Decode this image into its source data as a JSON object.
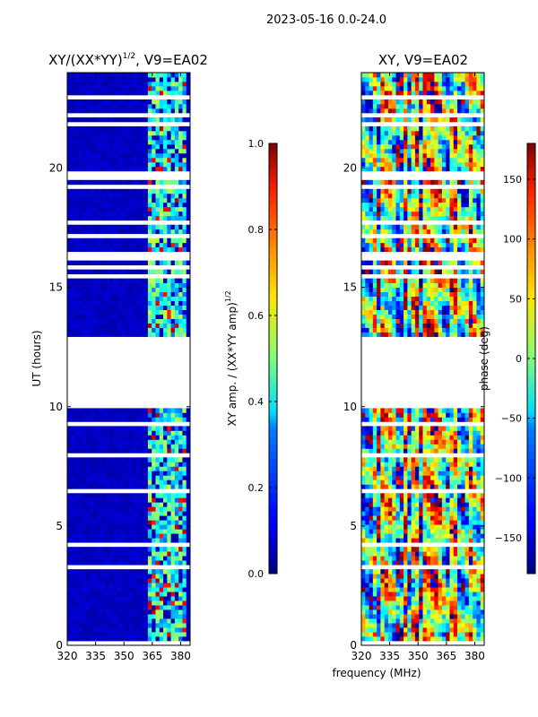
{
  "figure": {
    "suptitle": "2023-05-16 0.0-24.0",
    "xlabel": "frequency (MHz)"
  },
  "colors": {
    "white": "#ffffff",
    "black": "#000000"
  },
  "chart_data": [
    {
      "type": "heatmap",
      "title": "XY/(XX*YY)",
      "title_sup": "1/2",
      "title_suffix": ", V9=EA02",
      "xlabel": "",
      "ylabel": "UT (hours)",
      "xlim": [
        320,
        385
      ],
      "ylim": [
        0,
        24
      ],
      "xticks": [
        320,
        335,
        350,
        365,
        380
      ],
      "yticks": [
        0,
        5,
        10,
        15,
        20
      ],
      "gaps_hours": [
        [
          9.85,
          12.85
        ]
      ],
      "high_band_mhz": [
        362,
        382
      ],
      "colorbar": {
        "label": "XY amp. / (XX*YY amp)",
        "label_sup": "1/2",
        "range": [
          0.0,
          1.0
        ],
        "ticks": [
          "0.0",
          "0.2",
          "0.4",
          "0.6",
          "0.8",
          "1.0"
        ],
        "colormap": "jet"
      }
    },
    {
      "type": "heatmap",
      "title": "XY, V9=EA02",
      "xlabel": "",
      "ylabel": "",
      "xlim": [
        320,
        385
      ],
      "ylim": [
        0,
        24
      ],
      "xticks": [
        320,
        335,
        350,
        365,
        380
      ],
      "yticks": [
        0,
        5,
        10,
        15,
        20
      ],
      "gaps_hours": [
        [
          9.85,
          12.85
        ]
      ],
      "colorbar": {
        "label": "phase (deg)",
        "range": [
          -180,
          180
        ],
        "ticks": [
          "−150",
          "−100",
          "−50",
          "0",
          "50",
          "100",
          "150"
        ],
        "colormap": "jet"
      }
    }
  ]
}
